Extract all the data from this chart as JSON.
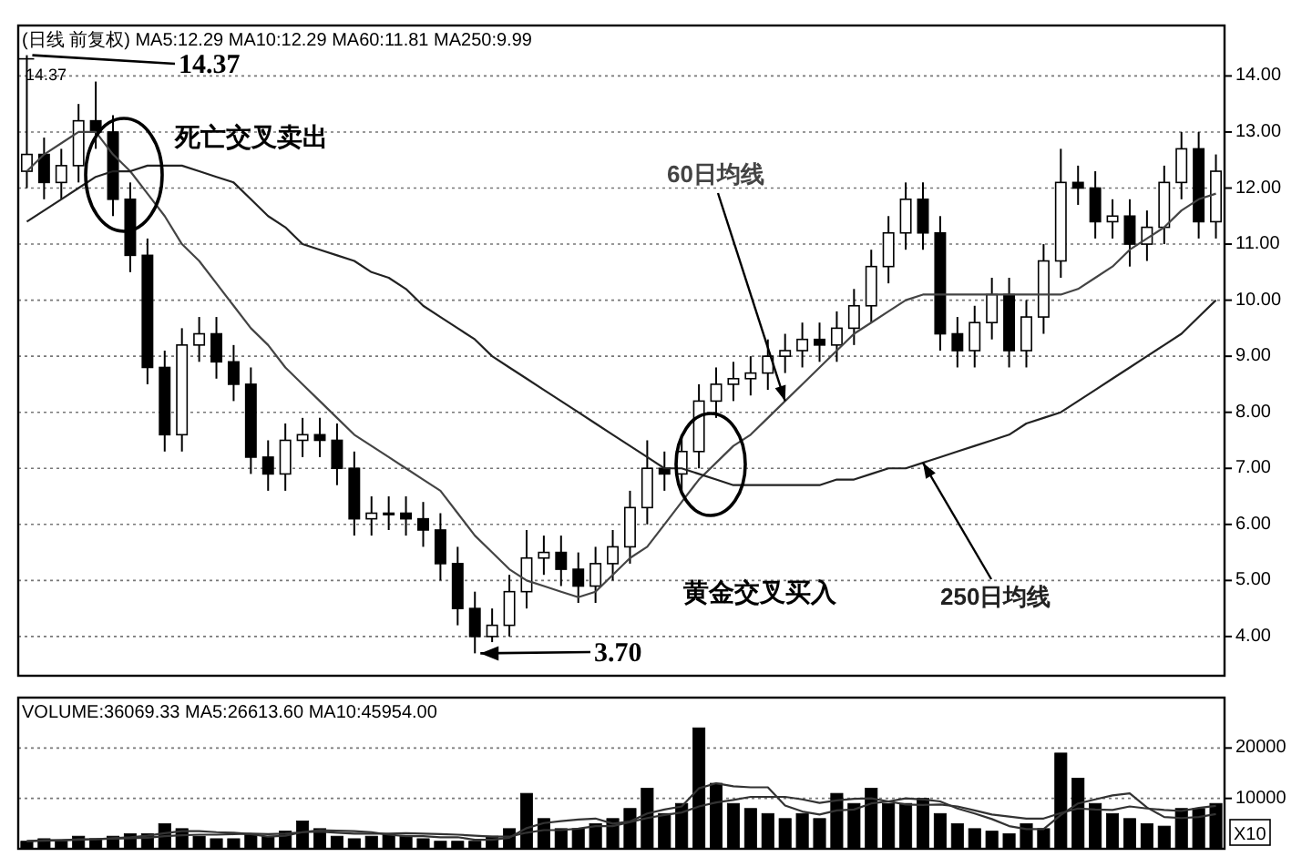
{
  "chart_data": [
    {
      "type": "candlestick",
      "title": "(日线 前复权) MA5:12.29 MA10:12.29 MA60:11.81 MA250:9.99",
      "categories": [
        null,
        null,
        null,
        null,
        null,
        null,
        null,
        null,
        null,
        null,
        null,
        null,
        null,
        null,
        null,
        null,
        null,
        null,
        null,
        null,
        null,
        null,
        null,
        null,
        null,
        null,
        null,
        null,
        null,
        null,
        null,
        null,
        null,
        null,
        null,
        null,
        null,
        null,
        null,
        null,
        null,
        null,
        null,
        null,
        null,
        null,
        null,
        null,
        null,
        null,
        null,
        null,
        null,
        null,
        null,
        null,
        null,
        null,
        null,
        null,
        null,
        null,
        null,
        null,
        null,
        null,
        null,
        null,
        null,
        null
      ],
      "ohlc": [
        [
          12.3,
          14.37,
          12.0,
          12.6
        ],
        [
          12.6,
          12.9,
          11.8,
          12.1
        ],
        [
          12.1,
          12.7,
          11.8,
          12.4
        ],
        [
          12.4,
          13.5,
          12.1,
          13.2
        ],
        [
          13.2,
          13.9,
          12.7,
          13.0
        ],
        [
          13.0,
          13.3,
          11.5,
          11.8
        ],
        [
          11.8,
          12.1,
          10.5,
          10.8
        ],
        [
          10.8,
          11.1,
          8.5,
          8.8
        ],
        [
          8.8,
          9.1,
          7.3,
          7.6
        ],
        [
          7.6,
          9.5,
          7.3,
          9.2
        ],
        [
          9.2,
          9.7,
          8.9,
          9.4
        ],
        [
          9.4,
          9.7,
          8.6,
          8.9
        ],
        [
          8.9,
          9.2,
          8.2,
          8.5
        ],
        [
          8.5,
          8.8,
          6.9,
          7.2
        ],
        [
          7.2,
          7.5,
          6.6,
          6.9
        ],
        [
          6.9,
          7.8,
          6.6,
          7.5
        ],
        [
          7.5,
          7.9,
          7.2,
          7.6
        ],
        [
          7.6,
          7.9,
          7.2,
          7.5
        ],
        [
          7.5,
          7.8,
          6.7,
          7.0
        ],
        [
          7.0,
          7.3,
          5.8,
          6.1
        ],
        [
          6.1,
          6.5,
          5.8,
          6.2
        ],
        [
          6.2,
          6.5,
          5.9,
          6.2
        ],
        [
          6.2,
          6.5,
          5.8,
          6.1
        ],
        [
          6.1,
          6.4,
          5.6,
          5.9
        ],
        [
          5.9,
          6.2,
          5.0,
          5.3
        ],
        [
          5.3,
          5.6,
          4.2,
          4.5
        ],
        [
          4.5,
          4.8,
          3.7,
          4.0
        ],
        [
          4.0,
          4.5,
          3.9,
          4.2
        ],
        [
          4.2,
          5.1,
          4.0,
          4.8
        ],
        [
          4.8,
          5.9,
          4.5,
          5.4
        ],
        [
          5.4,
          5.8,
          5.1,
          5.5
        ],
        [
          5.5,
          5.8,
          4.9,
          5.2
        ],
        [
          5.2,
          5.5,
          4.6,
          4.9
        ],
        [
          4.9,
          5.6,
          4.6,
          5.3
        ],
        [
          5.3,
          5.9,
          5.0,
          5.6
        ],
        [
          5.6,
          6.6,
          5.3,
          6.3
        ],
        [
          6.3,
          7.5,
          6.0,
          7.0
        ],
        [
          7.0,
          7.3,
          6.6,
          6.9
        ],
        [
          6.9,
          7.6,
          6.6,
          7.3
        ],
        [
          7.3,
          8.5,
          7.0,
          8.2
        ],
        [
          8.2,
          8.8,
          7.9,
          8.5
        ],
        [
          8.5,
          8.9,
          8.2,
          8.6
        ],
        [
          8.6,
          9.0,
          8.3,
          8.7
        ],
        [
          8.7,
          9.3,
          8.4,
          9.0
        ],
        [
          9.0,
          9.4,
          8.7,
          9.1
        ],
        [
          9.1,
          9.6,
          8.8,
          9.3
        ],
        [
          9.3,
          9.6,
          8.9,
          9.2
        ],
        [
          9.2,
          9.8,
          8.9,
          9.5
        ],
        [
          9.5,
          10.2,
          9.2,
          9.9
        ],
        [
          9.9,
          10.9,
          9.6,
          10.6
        ],
        [
          10.6,
          11.5,
          10.3,
          11.2
        ],
        [
          11.2,
          12.1,
          10.9,
          11.8
        ],
        [
          11.8,
          12.1,
          10.9,
          11.2
        ],
        [
          11.2,
          11.5,
          9.1,
          9.4
        ],
        [
          9.4,
          9.7,
          8.8,
          9.1
        ],
        [
          9.1,
          9.9,
          8.8,
          9.6
        ],
        [
          9.6,
          10.4,
          9.3,
          10.1
        ],
        [
          10.1,
          10.4,
          8.8,
          9.1
        ],
        [
          9.1,
          10.0,
          8.8,
          9.7
        ],
        [
          9.7,
          11.0,
          9.4,
          10.7
        ],
        [
          10.7,
          12.7,
          10.4,
          12.1
        ],
        [
          12.1,
          12.4,
          11.7,
          12.0
        ],
        [
          12.0,
          12.3,
          11.1,
          11.4
        ],
        [
          11.4,
          11.8,
          11.1,
          11.5
        ],
        [
          11.5,
          11.8,
          10.6,
          11.0
        ],
        [
          11.0,
          11.6,
          10.7,
          11.3
        ],
        [
          11.3,
          12.4,
          11.0,
          12.1
        ],
        [
          12.1,
          13.0,
          11.8,
          12.7
        ],
        [
          12.7,
          13.0,
          11.1,
          11.4
        ],
        [
          11.4,
          12.6,
          11.1,
          12.3
        ]
      ],
      "series": [
        {
          "name": "60日均线",
          "type": "line",
          "color": "#444444",
          "values": [
            12.3,
            12.6,
            12.8,
            13.0,
            13.0,
            12.6,
            12.3,
            11.9,
            11.5,
            11.0,
            10.7,
            10.3,
            9.9,
            9.5,
            9.2,
            8.8,
            8.5,
            8.2,
            7.9,
            7.6,
            7.4,
            7.2,
            7.0,
            6.8,
            6.6,
            6.2,
            5.8,
            5.5,
            5.2,
            5.0,
            4.9,
            4.8,
            4.7,
            4.8,
            5.1,
            5.4,
            5.6,
            6.0,
            6.4,
            6.8,
            7.1,
            7.4,
            7.6,
            7.9,
            8.2,
            8.5,
            8.8,
            9.1,
            9.4,
            9.6,
            9.8,
            10.0,
            10.1,
            10.1,
            10.1,
            10.1,
            10.1,
            10.1,
            10.1,
            10.1,
            10.1,
            10.2,
            10.4,
            10.6,
            10.9,
            11.1,
            11.3,
            11.6,
            11.8,
            11.9
          ]
        },
        {
          "name": "250日均线",
          "type": "line",
          "color": "#222222",
          "values": [
            11.4,
            11.6,
            11.8,
            12.0,
            12.2,
            12.3,
            12.3,
            12.4,
            12.4,
            12.4,
            12.3,
            12.2,
            12.1,
            11.8,
            11.5,
            11.3,
            11.0,
            10.9,
            10.8,
            10.7,
            10.5,
            10.4,
            10.2,
            9.9,
            9.7,
            9.5,
            9.3,
            9.0,
            8.8,
            8.6,
            8.4,
            8.2,
            8.0,
            7.8,
            7.6,
            7.4,
            7.2,
            7.0,
            7.0,
            6.9,
            6.8,
            6.7,
            6.7,
            6.7,
            6.7,
            6.7,
            6.7,
            6.8,
            6.8,
            6.9,
            7.0,
            7.0,
            7.1,
            7.2,
            7.3,
            7.4,
            7.5,
            7.6,
            7.8,
            7.9,
            8.0,
            8.2,
            8.4,
            8.6,
            8.8,
            9.0,
            9.2,
            9.4,
            9.7,
            10.0
          ]
        }
      ],
      "ylim": [
        3.3,
        14.9
      ],
      "yticks": [
        {
          "value": 4,
          "label": "4.00"
        },
        {
          "value": 5,
          "label": "5.00"
        },
        {
          "value": 6,
          "label": "6.00"
        },
        {
          "value": 7,
          "label": "7.00"
        },
        {
          "value": 8,
          "label": "8.00"
        },
        {
          "value": 9,
          "label": "9.00"
        },
        {
          "value": 10,
          "label": "10.00"
        },
        {
          "value": 11,
          "label": "11.00"
        },
        {
          "value": 12,
          "label": "12.00"
        },
        {
          "value": 13,
          "label": "13.00"
        },
        {
          "value": 14,
          "label": "14.00"
        }
      ],
      "grid": "y",
      "annotations": [
        "14.37",
        "14.37",
        "3.70",
        "死亡交叉卖出",
        "黄金交叉买入"
      ]
    },
    {
      "type": "bar",
      "title": "VOLUME:36069.33 MA5:26613.60 MA10:45954.00",
      "categories": [
        null,
        null,
        null,
        null,
        null,
        null,
        null,
        null,
        null,
        null,
        null,
        null,
        null,
        null,
        null,
        null,
        null,
        null,
        null,
        null,
        null,
        null,
        null,
        null,
        null,
        null,
        null,
        null,
        null,
        null,
        null,
        null,
        null,
        null,
        null,
        null,
        null,
        null,
        null,
        null,
        null,
        null,
        null,
        null,
        null,
        null,
        null,
        null,
        null,
        null,
        null,
        null,
        null,
        null,
        null,
        null,
        null,
        null,
        null,
        null,
        null,
        null,
        null,
        null,
        null,
        null,
        null,
        null,
        null,
        null
      ],
      "series": [
        {
          "type": "bar",
          "color": "#000000",
          "values": [
            1500,
            2000,
            1500,
            2500,
            2000,
            2500,
            3000,
            3000,
            5000,
            4000,
            2500,
            2000,
            2000,
            3000,
            2500,
            3500,
            5500,
            4000,
            2500,
            2000,
            2500,
            3000,
            2500,
            2000,
            1500,
            1500,
            1500,
            2500,
            4000,
            11000,
            6000,
            4000,
            4000,
            5000,
            6000,
            8000,
            12000,
            7000,
            9000,
            24000,
            13000,
            9000,
            8000,
            7000,
            6000,
            7000,
            6000,
            11000,
            9000,
            12000,
            9000,
            9000,
            10000,
            7000,
            5000,
            4000,
            3500,
            3000,
            5000,
            4000,
            19000,
            14000,
            9000,
            7000,
            6000,
            5000,
            4500,
            8000,
            8000,
            9000
          ]
        },
        {
          "type": "line",
          "color": "#333333",
          "values": [
            1500,
            1700,
            1700,
            1900,
            1900,
            2100,
            2300,
            2600,
            3100,
            3500,
            3500,
            3300,
            3200,
            2900,
            2400,
            2600,
            3300,
            3700,
            3600,
            3500,
            3300,
            2800,
            2500,
            2500,
            2300,
            2300,
            1800,
            1800,
            2200,
            4100,
            5100,
            5500,
            5800,
            6000,
            5000,
            5400,
            7000,
            7800,
            8400,
            12000,
            13000,
            12400,
            12200,
            12200,
            8600,
            7400,
            6800,
            7600,
            7800,
            9000,
            9400,
            10000,
            9800,
            9400,
            8000,
            7000,
            5900,
            4500,
            3900,
            3900,
            6700,
            9000,
            9800,
            10600,
            11000,
            8200,
            6300,
            6100,
            6300,
            6900
          ]
        },
        {
          "type": "line",
          "color": "#333333",
          "values": [
            1500,
            1600,
            1700,
            1800,
            1900,
            2000,
            2100,
            2200,
            2500,
            2700,
            2800,
            2800,
            2900,
            3000,
            2900,
            3000,
            3300,
            3400,
            3200,
            3000,
            3000,
            3000,
            3100,
            3000,
            2900,
            2800,
            2600,
            2400,
            2400,
            3200,
            3700,
            3700,
            4000,
            4500,
            4500,
            5300,
            6100,
            6700,
            7200,
            8400,
            9200,
            9700,
            10300,
            10300,
            10300,
            9800,
            9100,
            9600,
            9900,
            10000,
            9400,
            8800,
            8700,
            8800,
            8400,
            7600,
            6800,
            6400,
            6000,
            6000,
            7100,
            8000,
            7800,
            7700,
            8400,
            8000,
            7700,
            7500,
            8100,
            8500
          ]
        }
      ],
      "ylim": [
        0,
        30000
      ],
      "yticks": [
        10000,
        20000
      ],
      "grid": "y",
      "annotations": [
        "X10"
      ]
    }
  ]
}
